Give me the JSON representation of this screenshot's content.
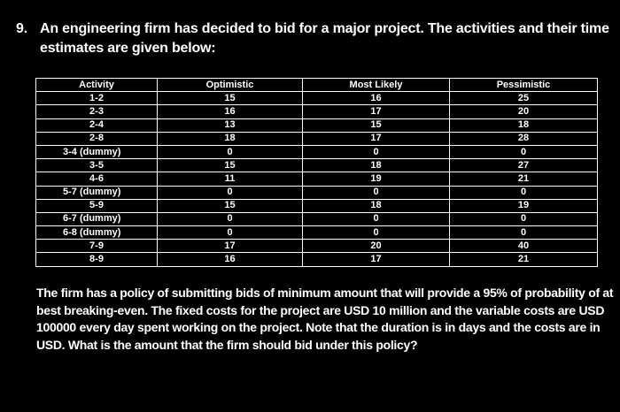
{
  "question": {
    "number": "9.",
    "intro": "An engineering firm has decided to bid for a major project. The activities and their time estimates are given below:"
  },
  "table": {
    "headers": [
      "Activity",
      "Optimistic",
      "Most Likely",
      "Pessimistic"
    ],
    "rows": [
      [
        "1-2",
        "15",
        "16",
        "25"
      ],
      [
        "2-3",
        "16",
        "17",
        "20"
      ],
      [
        "2-4",
        "13",
        "15",
        "18"
      ],
      [
        "2-8",
        "18",
        "17",
        "28"
      ],
      [
        "3-4 (dummy)",
        "0",
        "0",
        "0"
      ],
      [
        "3-5",
        "15",
        "18",
        "27"
      ],
      [
        "4-6",
        "11",
        "19",
        "21"
      ],
      [
        "5-7 (dummy)",
        "0",
        "0",
        "0"
      ],
      [
        "5-9",
        "15",
        "18",
        "19"
      ],
      [
        "6-7 (dummy)",
        "0",
        "0",
        "0"
      ],
      [
        "6-8 (dummy)",
        "0",
        "0",
        "0"
      ],
      [
        "7-9",
        "17",
        "20",
        "40"
      ],
      [
        "8-9",
        "16",
        "17",
        "21"
      ]
    ]
  },
  "policy": "The firm has a policy of submitting bids of minimum amount that will provide a 95% of probability of at best breaking-even. The fixed costs for the project are USD 10 million and the variable costs are USD 100000 every day spent working on the project. Note that the duration is in days and the costs are in USD. What is the amount that the firm should bid under this policy?"
}
